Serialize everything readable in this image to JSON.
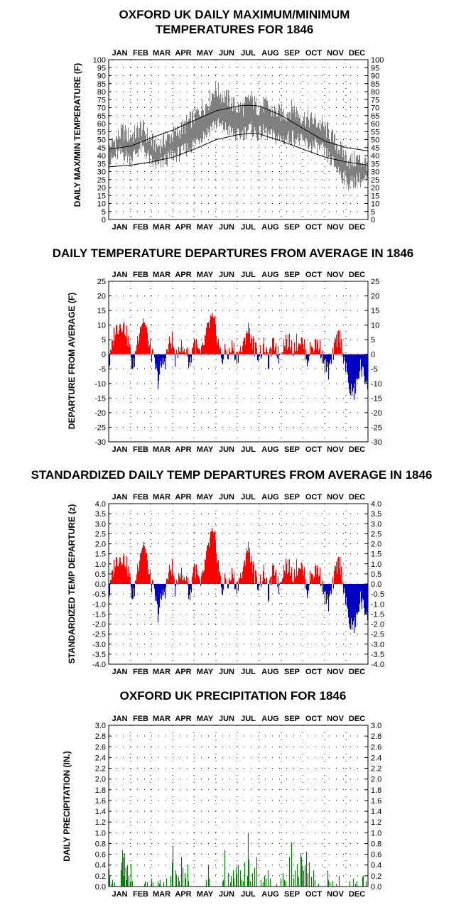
{
  "months": [
    "JAN",
    "FEB",
    "MAR",
    "APR",
    "MAY",
    "JUN",
    "JUL",
    "AUG",
    "SEP",
    "OCT",
    "NOV",
    "DEC"
  ],
  "colors": {
    "temp": "#808080",
    "positive": "#ff0000",
    "negative": "#0000c0",
    "precip": "#008000",
    "grid": "#000000"
  },
  "chart_data": [
    {
      "type": "line",
      "title": [
        "OXFORD UK DAILY MAXIMUM/MINIMUM",
        "TEMPERATURES FOR 1846"
      ],
      "ylabel": "DAILY MAX/MIN TEMPERATURE  (F)",
      "ylim": [
        0,
        100
      ],
      "yticks": [
        "0",
        "5",
        "10",
        "15",
        "20",
        "25",
        "30",
        "35",
        "40",
        "45",
        "50",
        "55",
        "60",
        "65",
        "70",
        "75",
        "80",
        "85",
        "90",
        "95",
        "100"
      ],
      "x": "day of year 1-365",
      "normals": {
        "max_anchor_days": [
          1,
          32,
          60,
          91,
          121,
          152,
          182,
          196,
          213,
          244,
          274,
          305,
          335,
          365
        ],
        "max_anchor_values": [
          44,
          46,
          51,
          56,
          62,
          68,
          71,
          71.5,
          71,
          65,
          57,
          49,
          45,
          43
        ],
        "min_anchor_days": [
          1,
          32,
          60,
          91,
          121,
          152,
          182,
          200,
          213,
          244,
          274,
          305,
          335,
          365
        ],
        "min_anchor_values": [
          33,
          34,
          36,
          39,
          44,
          50,
          53,
          54,
          53.5,
          49,
          44,
          39,
          36,
          34
        ]
      },
      "series": [
        {
          "name": "max",
          "anchor_days": [
            1,
            10,
            20,
            30,
            40,
            45,
            50,
            60,
            70,
            80,
            90,
            100,
            110,
            120,
            130,
            140,
            150,
            160,
            170,
            180,
            190,
            200,
            210,
            220,
            230,
            240,
            250,
            260,
            270,
            280,
            290,
            300,
            310,
            320,
            330,
            340,
            350,
            365
          ],
          "anchor_values": [
            45,
            50,
            55,
            52,
            54,
            58,
            56,
            49,
            46,
            50,
            53,
            55,
            60,
            64,
            69,
            73,
            82,
            78,
            75,
            70,
            70,
            76,
            70,
            72,
            68,
            67,
            66,
            70,
            65,
            63,
            62,
            59,
            55,
            48,
            42,
            36,
            38,
            35
          ]
        },
        {
          "name": "min",
          "anchor_days": [
            1,
            10,
            20,
            30,
            40,
            45,
            50,
            60,
            70,
            80,
            90,
            100,
            110,
            120,
            130,
            140,
            150,
            160,
            170,
            180,
            190,
            200,
            210,
            220,
            230,
            240,
            250,
            260,
            270,
            280,
            290,
            300,
            310,
            320,
            330,
            340,
            350,
            365
          ],
          "anchor_values": [
            35,
            40,
            42,
            38,
            42,
            45,
            44,
            36,
            33,
            37,
            40,
            41,
            44,
            47,
            52,
            55,
            60,
            58,
            56,
            52,
            54,
            57,
            53,
            55,
            52,
            51,
            50,
            52,
            49,
            47,
            46,
            44,
            39,
            33,
            27,
            22,
            25,
            24
          ]
        }
      ]
    },
    {
      "type": "bar",
      "title": [
        "DAILY TEMPERATURE DEPARTURES FROM AVERAGE IN 1846"
      ],
      "ylabel": "DEPARTURE FROM AVERAGE  (F)",
      "ylim": [
        -30,
        25
      ],
      "yticks": [
        "-30",
        "-25",
        "-20",
        "-15",
        "-10",
        "-5",
        "0",
        "5",
        "10",
        "15",
        "20",
        "25"
      ],
      "x": "day of year 1-365",
      "anchor_days": [
        1,
        5,
        8,
        12,
        18,
        25,
        30,
        35,
        40,
        45,
        50,
        55,
        60,
        65,
        70,
        75,
        80,
        85,
        90,
        95,
        100,
        105,
        110,
        115,
        120,
        125,
        130,
        135,
        140,
        145,
        150,
        155,
        160,
        165,
        170,
        175,
        180,
        185,
        190,
        195,
        200,
        205,
        210,
        215,
        220,
        225,
        230,
        235,
        240,
        245,
        250,
        255,
        260,
        265,
        270,
        275,
        280,
        285,
        290,
        295,
        300,
        305,
        310,
        315,
        320,
        325,
        330,
        335,
        340,
        345,
        350,
        355,
        360,
        365
      ],
      "anchor_values": [
        -4,
        2,
        7,
        9,
        11,
        8,
        2,
        -6,
        4,
        10,
        12,
        6,
        1,
        -3,
        -9,
        -4,
        -2,
        3,
        5,
        -3,
        4,
        1,
        2,
        -4,
        5,
        2,
        -1,
        4,
        9,
        12,
        10,
        4,
        -2,
        1,
        0,
        3,
        -1,
        1,
        2,
        9,
        7,
        3,
        0,
        1,
        3,
        -3,
        2,
        4,
        -1,
        3,
        5,
        4,
        2,
        4,
        5,
        3,
        -2,
        2,
        3,
        4,
        1,
        -4,
        -6,
        -2,
        4,
        7,
        1,
        -6,
        -12,
        -14,
        -10,
        -4,
        -8,
        -9
      ]
    },
    {
      "type": "bar",
      "title": [
        "STANDARDIZED DAILY TEMP DEPARTURES FROM AVERAGE IN 1846"
      ],
      "ylabel": "STANDARDIZED TEMP DEPARTURE  (z)",
      "ylim": [
        -4,
        4
      ],
      "yticks": [
        "-4.0",
        "-3.5",
        "-3.0",
        "-2.5",
        "-2.0",
        "-1.5",
        "-1.0",
        "-0.5",
        "0.0",
        "0.5",
        "1.0",
        "1.5",
        "2.0",
        "2.5",
        "3.0",
        "3.5",
        "4.0"
      ],
      "x": "day of year 1-365",
      "anchor_days": [
        1,
        5,
        8,
        12,
        18,
        25,
        30,
        35,
        40,
        45,
        50,
        55,
        60,
        65,
        70,
        75,
        80,
        85,
        90,
        95,
        100,
        105,
        110,
        115,
        120,
        125,
        130,
        135,
        140,
        145,
        150,
        155,
        160,
        165,
        170,
        175,
        180,
        185,
        190,
        195,
        200,
        205,
        210,
        215,
        220,
        225,
        230,
        235,
        240,
        245,
        250,
        255,
        260,
        265,
        270,
        275,
        280,
        285,
        290,
        295,
        300,
        305,
        310,
        315,
        320,
        325,
        330,
        335,
        340,
        345,
        350,
        355,
        360,
        365
      ],
      "anchor_values": [
        -0.6,
        0.3,
        0.9,
        1.2,
        1.4,
        1.1,
        0.3,
        -0.9,
        0.6,
        1.6,
        2.1,
        1.0,
        0.1,
        -0.5,
        -1.5,
        -0.7,
        -0.3,
        0.5,
        0.9,
        -0.5,
        0.8,
        0.2,
        0.4,
        -0.8,
        1.0,
        0.5,
        -0.2,
        0.8,
        1.7,
        2.5,
        2.2,
        1.0,
        -0.4,
        0.2,
        0.0,
        0.6,
        -0.2,
        0.3,
        0.5,
        1.9,
        1.5,
        0.6,
        0.0,
        0.2,
        0.6,
        -0.6,
        0.4,
        0.8,
        -0.2,
        0.6,
        1.0,
        0.8,
        0.4,
        0.8,
        1.0,
        0.6,
        -0.4,
        0.4,
        0.6,
        0.8,
        0.2,
        -0.7,
        -1.0,
        -0.3,
        0.7,
        1.2,
        0.2,
        -1.1,
        -2.0,
        -2.2,
        -1.7,
        -0.7,
        -1.3,
        -1.4
      ]
    },
    {
      "type": "bar",
      "title": [
        "OXFORD UK PRECIPITATION FOR 1846"
      ],
      "ylabel": "DAILY PRECIPITATION (IN.)",
      "ylim": [
        0,
        3
      ],
      "yticks": [
        "0.0",
        "0.2",
        "0.4",
        "0.6",
        "0.8",
        "1.0",
        "1.2",
        "1.4",
        "1.6",
        "1.8",
        "2.0",
        "2.2",
        "2.4",
        "2.6",
        "2.8",
        "3.0"
      ],
      "x": "day of year 1-365",
      "days": [
        1,
        2,
        5,
        6,
        9,
        18,
        19,
        20,
        21,
        22,
        23,
        25,
        26,
        27,
        29,
        31,
        32,
        34,
        51,
        52,
        55,
        60,
        61,
        63,
        70,
        72,
        73,
        78,
        82,
        88,
        90,
        91,
        95,
        96,
        99,
        100,
        103,
        105,
        108,
        109,
        112,
        113,
        138,
        141,
        142,
        161,
        162,
        164,
        169,
        172,
        173,
        176,
        177,
        180,
        181,
        183,
        186,
        188,
        190,
        192,
        196,
        197,
        198,
        200,
        203,
        206,
        209,
        215,
        218,
        220,
        222,
        225,
        228,
        237,
        243,
        246,
        248,
        250,
        255,
        258,
        261,
        263,
        266,
        268,
        271,
        272,
        273,
        275,
        277,
        279,
        281,
        283,
        286,
        289,
        291,
        296,
        309,
        310,
        312,
        316,
        321,
        325,
        340,
        345,
        348,
        350,
        358,
        359,
        363
      ],
      "values": [
        0.32,
        0.18,
        0.05,
        0.12,
        0.08,
        0.3,
        0.45,
        0.68,
        0.55,
        0.2,
        0.62,
        0.35,
        0.12,
        0.4,
        0.2,
        0.08,
        0.42,
        0.1,
        0.05,
        0.1,
        0.08,
        0.04,
        0.15,
        0.08,
        0.1,
        0.05,
        0.12,
        0.08,
        0.15,
        0.2,
        0.45,
        0.75,
        0.3,
        0.22,
        0.18,
        0.1,
        0.55,
        0.35,
        0.25,
        0.15,
        0.4,
        0.1,
        0.12,
        0.4,
        0.15,
        0.1,
        0.12,
        0.68,
        0.25,
        0.08,
        0.2,
        0.3,
        0.15,
        0.35,
        0.22,
        0.4,
        0.3,
        0.12,
        0.1,
        0.45,
        0.2,
        1.0,
        0.5,
        0.1,
        0.25,
        0.35,
        0.55,
        0.12,
        0.08,
        0.2,
        0.15,
        0.3,
        0.15,
        0.05,
        0.15,
        0.25,
        0.12,
        0.1,
        0.55,
        0.82,
        0.15,
        0.3,
        0.42,
        0.18,
        0.62,
        0.55,
        0.38,
        0.3,
        0.4,
        0.65,
        0.25,
        0.45,
        0.18,
        0.3,
        0.12,
        0.05,
        0.3,
        0.12,
        0.08,
        0.1,
        0.05,
        0.2,
        0.1,
        0.15,
        0.05,
        0.1,
        0.18,
        0.2,
        0.1
      ]
    }
  ]
}
